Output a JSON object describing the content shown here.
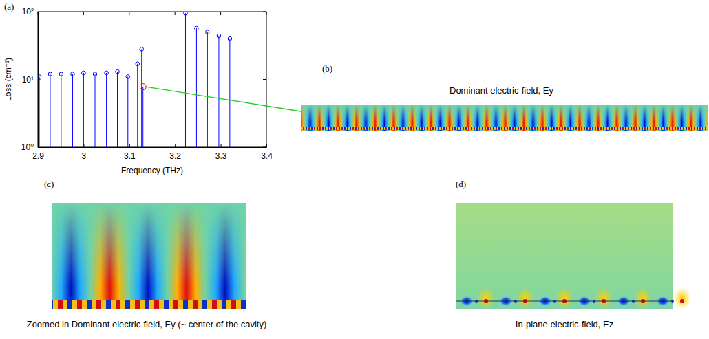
{
  "chart_data": {
    "type": "stem",
    "x_label": "Frequency (THz)",
    "y_label": "Loss (cm⁻¹)",
    "x": [
      2.903,
      2.927,
      2.951,
      2.976,
      3.0,
      3.025,
      3.05,
      3.074,
      3.097,
      3.118,
      3.127,
      3.13,
      3.223,
      3.247,
      3.271,
      3.296,
      3.32
    ],
    "values": [
      11,
      12,
      12,
      12,
      12.5,
      12,
      12.5,
      13,
      11,
      17,
      28,
      7.8,
      95,
      57,
      50,
      44,
      40
    ],
    "color": "#0000ff",
    "colors": [
      "#0000ff",
      "#0000ff",
      "#0000ff",
      "#0000ff",
      "#0000ff",
      "#0000ff",
      "#0000ff",
      "#0000ff",
      "#0000ff",
      "#0000ff",
      "#0000ff",
      "#ff0000",
      "#0000ff",
      "#0000ff",
      "#0000ff",
      "#0000ff",
      "#0000ff"
    ],
    "marker": "circle",
    "log": "y",
    "grid": false,
    "xlim": [
      2.9,
      3.4
    ],
    "xticks": [
      2.9,
      3,
      3.1,
      3.2,
      3.3,
      3.4
    ],
    "ylim": [
      1,
      100
    ],
    "yticks": [
      {
        "value": 1,
        "label": "10⁰"
      },
      {
        "value": 10,
        "label": "10¹"
      },
      {
        "value": 100,
        "label": "10²"
      }
    ]
  },
  "figure": {
    "panels": [
      {
        "letter": "(a)"
      },
      {
        "letter": "(b)",
        "title": "Dominant electric-field, Ey"
      },
      {
        "letter": "(c)",
        "caption": "Zoomed in Dominant electric-field, Ey (~ center of the cavity)"
      },
      {
        "letter": "(d)",
        "caption": "In-plane electric-field, Ez"
      }
    ]
  }
}
